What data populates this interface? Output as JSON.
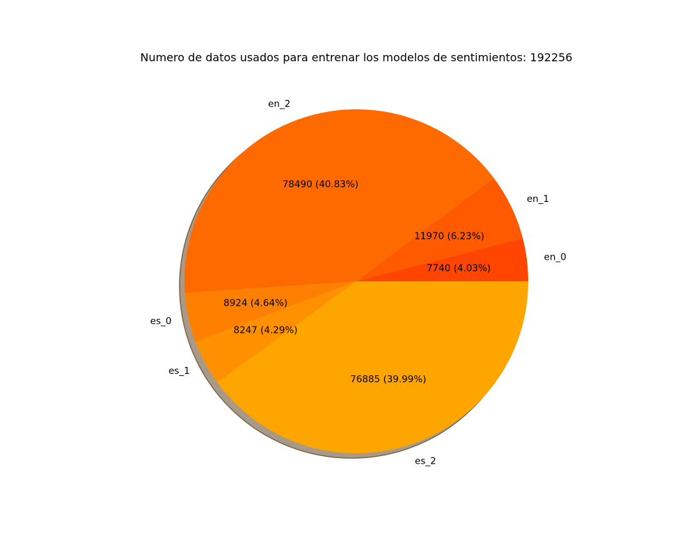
{
  "chart_data": {
    "type": "pie",
    "title": "Numero de datos usados para entrenar los modelos de sentimientos: 192256",
    "slices": [
      {
        "label": "en_0",
        "value": 7740,
        "display": "7740 (4.03%)",
        "color": "#FF4500"
      },
      {
        "label": "en_1",
        "value": 11970,
        "display": "11970 (6.23%)",
        "color": "#FF5A00"
      },
      {
        "label": "en_2",
        "value": 78490,
        "display": "78490 (40.83%)",
        "color": "#FF6A00"
      },
      {
        "label": "es_0",
        "value": 8924,
        "display": "8924 (4.64%)",
        "color": "#FF8000"
      },
      {
        "label": "es_1",
        "value": 8247,
        "display": "8247 (4.29%)",
        "color": "#FF9100"
      },
      {
        "label": "es_2",
        "value": 76885,
        "display": "76885 (39.99%)",
        "color": "#FFA500"
      }
    ],
    "start_angle_deg": 0,
    "direction": "counterclockwise",
    "shadow": true
  }
}
